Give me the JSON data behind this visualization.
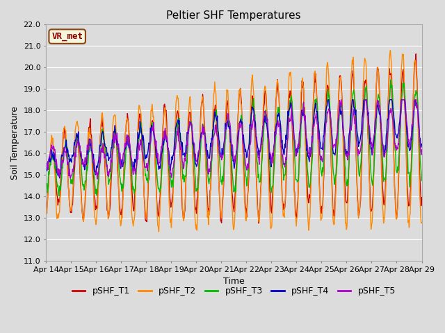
{
  "title": "Peltier SHF Temperatures",
  "xlabel": "Time",
  "ylabel": "Soil Temperature",
  "ylim": [
    11.0,
    22.0
  ],
  "yticks": [
    11.0,
    12.0,
    13.0,
    14.0,
    15.0,
    16.0,
    17.0,
    18.0,
    19.0,
    20.0,
    21.0,
    22.0
  ],
  "xtick_labels": [
    "Apr 14",
    "Apr 15",
    "Apr 16",
    "Apr 17",
    "Apr 18",
    "Apr 19",
    "Apr 20",
    "Apr 21",
    "Apr 22",
    "Apr 23",
    "Apr 24",
    "Apr 25",
    "Apr 26",
    "Apr 27",
    "Apr 28",
    "Apr 29"
  ],
  "series_colors": [
    "#cc0000",
    "#ff8800",
    "#00bb00",
    "#0000cc",
    "#aa00cc"
  ],
  "series_names": [
    "pSHF_T1",
    "pSHF_T2",
    "pSHF_T3",
    "pSHF_T4",
    "pSHF_T5"
  ],
  "annotation_text": "VR_met",
  "background_color": "#dcdcdc",
  "plot_bg_color": "#dcdcdc",
  "grid_color": "#ffffff",
  "title_fontsize": 11,
  "axis_label_fontsize": 9,
  "tick_fontsize": 8,
  "legend_fontsize": 9,
  "linewidth": 1.0
}
